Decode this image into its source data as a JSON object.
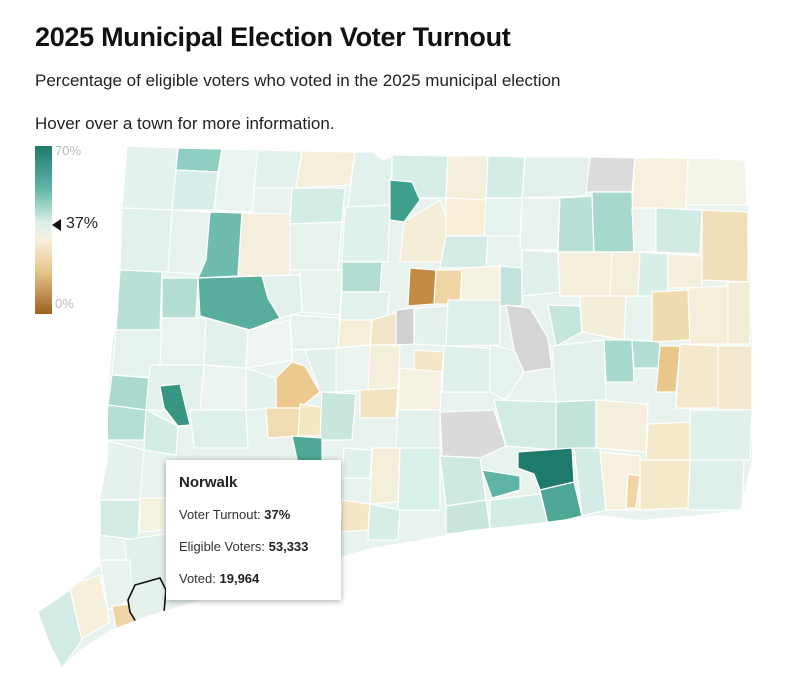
{
  "header": {
    "title": "2025 Municipal Election Voter Turnout",
    "subtitle": "Percentage of eligible voters who voted in the 2025 municipal election",
    "hint": "Hover over a town for more information."
  },
  "legend": {
    "max_label": "70%",
    "min_label": "0%",
    "current_label": "37%",
    "min_value": 0,
    "max_value": 70,
    "current_value": 37
  },
  "colors": {
    "high": "#1f7a6b",
    "mid_high": "#5fb4a5",
    "neutral": "#f6f1df",
    "low": "#9a6120",
    "no_data": "#dcdcdc",
    "border": "#ffffff"
  },
  "tooltip": {
    "town": "Norwalk",
    "turnout_label": "Voter Turnout:",
    "turnout_value": "37%",
    "eligible_label": "Eligible Voters:",
    "eligible_value": "53,333",
    "voted_label": "Voted:",
    "voted_value": "19,964"
  }
}
